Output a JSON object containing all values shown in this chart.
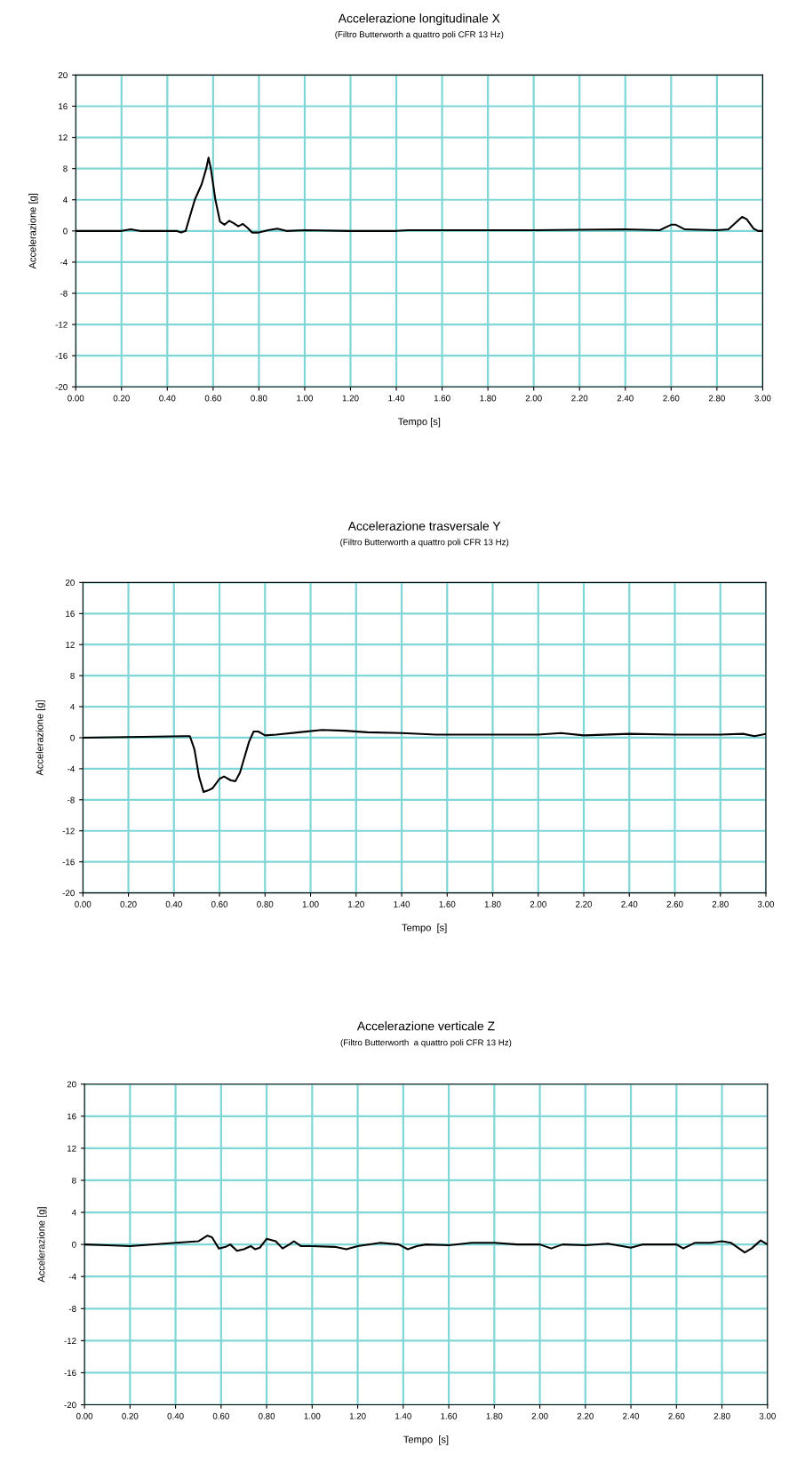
{
  "chart_data": [
    {
      "type": "line",
      "title": "Accelerazione longitudinale X",
      "subtitle": "(Filtro Butterworth a quattro poli CFR 13 Hz)",
      "xlabel": "Tempo [s]",
      "ylabel": "Accelerazione [g]",
      "xlim": [
        0,
        3
      ],
      "xticks": [
        {
          "value": 0,
          "label": "0.00"
        },
        {
          "value": 0.2,
          "label": "0.20"
        },
        {
          "value": 0.4,
          "label": "0.40"
        },
        {
          "value": 0.6,
          "label": "0.60"
        },
        {
          "value": 0.8,
          "label": "0.80"
        },
        {
          "value": 1,
          "label": "1.00"
        },
        {
          "value": 1.2,
          "label": "1.20"
        },
        {
          "value": 1.4,
          "label": "1.40"
        },
        {
          "value": 1.6,
          "label": "1.60"
        },
        {
          "value": 1.8,
          "label": "1.80"
        },
        {
          "value": 2,
          "label": "2.00"
        },
        {
          "value": 2.2,
          "label": "2.20"
        },
        {
          "value": 2.4,
          "label": "2.40"
        },
        {
          "value": 2.6,
          "label": "2.60"
        },
        {
          "value": 2.8,
          "label": "2.80"
        },
        {
          "value": 3,
          "label": "3.00"
        }
      ],
      "ylim": [
        -20,
        20
      ],
      "yticks": [
        -20,
        -16,
        -12,
        -8,
        -4,
        0,
        4,
        8,
        12,
        16,
        20
      ],
      "grid": true,
      "series": [
        {
          "color": "#000000",
          "x": [
            0,
            0.2,
            0.24,
            0.28,
            0.44,
            0.46,
            0.48,
            0.5,
            0.52,
            0.55,
            0.57,
            0.58,
            0.59,
            0.61,
            0.63,
            0.65,
            0.67,
            0.69,
            0.71,
            0.73,
            0.75,
            0.77,
            0.8,
            0.84,
            0.88,
            0.92,
            1.0,
            1.2,
            1.4,
            1.45,
            1.8,
            2.0,
            2.4,
            2.55,
            2.6,
            2.62,
            2.66,
            2.8,
            2.85,
            2.88,
            2.91,
            2.93,
            2.96,
            2.98,
            3.0
          ],
          "values": [
            0,
            0,
            0.2,
            0,
            0,
            -0.2,
            0,
            2,
            4,
            6,
            8,
            9.4,
            8,
            4,
            1.2,
            0.8,
            1.3,
            1.0,
            0.6,
            0.9,
            0.4,
            -0.2,
            -0.2,
            0.1,
            0.3,
            0,
            0.1,
            0,
            0,
            0.1,
            0.1,
            0.1,
            0.2,
            0.1,
            0.8,
            0.8,
            0.2,
            0.1,
            0.2,
            1.0,
            1.8,
            1.5,
            0.3,
            0,
            0
          ]
        }
      ]
    },
    {
      "type": "line",
      "title": "Accelerazione trasversale Y",
      "subtitle": "(Filtro Butterworth a quattro poli CFR 13 Hz)",
      "xlabel": "Tempo  [s]",
      "ylabel": "Accelerazione [g]",
      "xlim": [
        0,
        3
      ],
      "xticks": [
        {
          "value": 0,
          "label": "0.00"
        },
        {
          "value": 0.2,
          "label": "0.20"
        },
        {
          "value": 0.4,
          "label": "0.40"
        },
        {
          "value": 0.6,
          "label": "0.60"
        },
        {
          "value": 0.8,
          "label": "0.80"
        },
        {
          "value": 1,
          "label": "1.00"
        },
        {
          "value": 1.2,
          "label": "1.20"
        },
        {
          "value": 1.4,
          "label": "1.40"
        },
        {
          "value": 1.6,
          "label": "1.60"
        },
        {
          "value": 1.8,
          "label": "1.80"
        },
        {
          "value": 2,
          "label": "2.00"
        },
        {
          "value": 2.2,
          "label": "2.20"
        },
        {
          "value": 2.4,
          "label": "2.40"
        },
        {
          "value": 2.6,
          "label": "2.60"
        },
        {
          "value": 2.8,
          "label": "2.80"
        },
        {
          "value": 3,
          "label": "3.00"
        }
      ],
      "ylim": [
        -20,
        20
      ],
      "yticks": [
        -20,
        -16,
        -12,
        -8,
        -4,
        0,
        4,
        8,
        12,
        16,
        20
      ],
      "grid": true,
      "series": [
        {
          "color": "#000000",
          "x": [
            0,
            0.45,
            0.47,
            0.49,
            0.51,
            0.53,
            0.55,
            0.57,
            0.6,
            0.62,
            0.65,
            0.67,
            0.69,
            0.71,
            0.73,
            0.75,
            0.77,
            0.8,
            0.85,
            0.95,
            1.05,
            1.15,
            1.25,
            1.4,
            1.55,
            1.8,
            2.0,
            2.1,
            2.2,
            2.4,
            2.6,
            2.8,
            2.9,
            2.95,
            3.0
          ],
          "values": [
            0,
            0.2,
            0.2,
            -1.5,
            -5,
            -7,
            -6.8,
            -6.5,
            -5.3,
            -5.0,
            -5.5,
            -5.6,
            -4.5,
            -2.5,
            -0.5,
            0.8,
            0.8,
            0.3,
            0.4,
            0.7,
            1.0,
            0.9,
            0.7,
            0.6,
            0.4,
            0.4,
            0.4,
            0.6,
            0.3,
            0.5,
            0.4,
            0.4,
            0.5,
            0.2,
            0.5
          ]
        }
      ]
    },
    {
      "type": "line",
      "title": "Accelerazione verticale Z",
      "subtitle": "(Filtro Butterworth  a quattro poli CFR 13 Hz)",
      "xlabel": "Tempo  [s]",
      "ylabel": "Accelerazione [g]",
      "xlim": [
        0,
        3
      ],
      "xticks": [
        {
          "value": 0,
          "label": "0.00"
        },
        {
          "value": 0.2,
          "label": "0.20"
        },
        {
          "value": 0.4,
          "label": "0.40"
        },
        {
          "value": 0.6,
          "label": "0.60"
        },
        {
          "value": 0.8,
          "label": "0.80"
        },
        {
          "value": 1,
          "label": "1.00"
        },
        {
          "value": 1.2,
          "label": "1.20"
        },
        {
          "value": 1.4,
          "label": "1.40"
        },
        {
          "value": 1.6,
          "label": "1.60"
        },
        {
          "value": 1.8,
          "label": "1.80"
        },
        {
          "value": 2,
          "label": "2.00"
        },
        {
          "value": 2.2,
          "label": "2.20"
        },
        {
          "value": 2.4,
          "label": "2.40"
        },
        {
          "value": 2.6,
          "label": "2.60"
        },
        {
          "value": 2.8,
          "label": "2.80"
        },
        {
          "value": 3,
          "label": "3.00"
        }
      ],
      "ylim": [
        -20,
        20
      ],
      "yticks": [
        -20,
        -16,
        -12,
        -8,
        -4,
        0,
        4,
        8,
        12,
        16,
        20
      ],
      "grid": true,
      "series": [
        {
          "color": "#000000",
          "x": [
            0,
            0.1,
            0.2,
            0.4,
            0.5,
            0.54,
            0.56,
            0.59,
            0.62,
            0.64,
            0.67,
            0.7,
            0.73,
            0.75,
            0.77,
            0.8,
            0.84,
            0.87,
            0.9,
            0.92,
            0.95,
            1.0,
            1.1,
            1.15,
            1.2,
            1.3,
            1.38,
            1.42,
            1.46,
            1.5,
            1.6,
            1.7,
            1.8,
            1.9,
            2.0,
            2.05,
            2.1,
            2.2,
            2.3,
            2.4,
            2.45,
            2.6,
            2.63,
            2.68,
            2.75,
            2.8,
            2.84,
            2.9,
            2.93,
            2.97,
            3.0
          ],
          "values": [
            0,
            -0.1,
            -0.2,
            0.2,
            0.4,
            1.1,
            0.9,
            -0.5,
            -0.3,
            0,
            -0.8,
            -0.6,
            -0.2,
            -0.6,
            -0.4,
            0.7,
            0.4,
            -0.5,
            0.0,
            0.4,
            -0.2,
            -0.2,
            -0.3,
            -0.6,
            -0.2,
            0.2,
            0.0,
            -0.6,
            -0.2,
            0,
            -0.1,
            0.2,
            0.2,
            0,
            0,
            -0.5,
            0.0,
            -0.1,
            0.1,
            -0.4,
            0,
            0,
            -0.5,
            0.2,
            0.2,
            0.4,
            0.2,
            -1.0,
            -0.5,
            0.5,
            0
          ]
        }
      ]
    }
  ]
}
